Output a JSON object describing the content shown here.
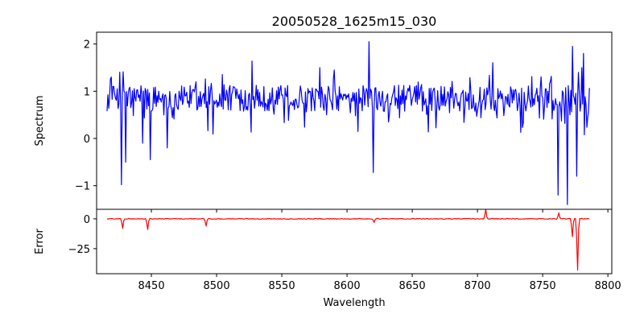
{
  "chart_data": [
    {
      "type": "line",
      "panel": "top",
      "title": "20050528_1625m15_030",
      "ylabel": "Spectrum",
      "xlabel": "",
      "xlim": [
        8408,
        8803
      ],
      "ylim": [
        -1.5,
        2.25
      ],
      "yticks": [
        -1,
        0,
        1,
        2
      ],
      "ytick_labels": [
        "−1",
        "0",
        "1",
        "2"
      ],
      "xticks": [
        8400,
        8450,
        8500,
        8550,
        8600,
        8650,
        8700,
        8750,
        8800
      ],
      "grid": false,
      "series": [
        {
          "color": "#0000ff",
          "x_start": 8416,
          "x_end": 8786,
          "features": [
            [
              8427,
              -0.98
            ],
            [
              8430,
              -0.5
            ],
            [
              8443,
              -0.1
            ],
            [
              8449,
              -0.45
            ],
            [
              8462,
              -0.3
            ],
            [
              8462,
              -0.2
            ],
            [
              8617,
              2.05
            ],
            [
              8620,
              -0.72
            ],
            [
              8762,
              -1.2
            ],
            [
              8769,
              -1.4
            ],
            [
              8773,
              -0.8
            ],
            [
              8776,
              -0.8
            ],
            [
              8773,
              1.95
            ],
            [
              8780,
              1.5
            ]
          ]
        }
      ]
    },
    {
      "type": "line",
      "panel": "bottom",
      "ylabel": "Error",
      "xlabel": "Wavelength",
      "xlim": [
        8408,
        8803
      ],
      "ylim": [
        -46,
        8
      ],
      "yticks": [
        0,
        -25
      ],
      "ytick_labels": [
        "0",
        "−25"
      ],
      "xticks": [
        8400,
        8450,
        8500,
        8550,
        8600,
        8650,
        8700,
        8750,
        8800
      ],
      "xtick_labels": [
        "8400",
        "8450",
        "8500",
        "8550",
        "8600",
        "8650",
        "8700",
        "8750",
        "8800"
      ],
      "grid": false,
      "series": [
        {
          "color": "#ff0000",
          "x_start": 8416,
          "x_end": 8786,
          "features": [
            [
              8428,
              -8
            ],
            [
              8447,
              -9
            ],
            [
              8492,
              -6
            ],
            [
              8621,
              -3
            ],
            [
              8706,
              8
            ],
            [
              8762,
              5
            ],
            [
              8773,
              -15
            ],
            [
              8777,
              -43
            ]
          ]
        }
      ]
    }
  ]
}
